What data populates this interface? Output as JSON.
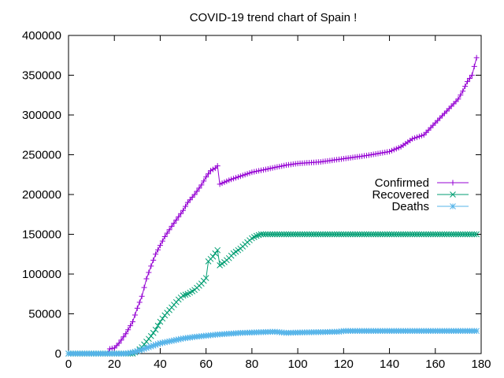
{
  "chart_data": {
    "type": "line",
    "title": "COVID-19 trend chart of Spain !",
    "xlabel": "",
    "ylabel": "",
    "xlim": [
      0,
      180
    ],
    "ylim": [
      0,
      400000
    ],
    "x_ticks": [
      0,
      20,
      40,
      60,
      80,
      100,
      120,
      140,
      160,
      180
    ],
    "y_ticks": [
      0,
      50000,
      100000,
      150000,
      200000,
      250000,
      300000,
      350000,
      400000
    ],
    "grid": false,
    "legend_position": "right-middle",
    "series": [
      {
        "name": "Confirmed",
        "color": "#9400d3",
        "marker": "plus",
        "points": [
          [
            0,
            0
          ],
          [
            17,
            0
          ],
          [
            18,
            6000
          ],
          [
            20,
            7000
          ],
          [
            22,
            13000
          ],
          [
            25,
            25000
          ],
          [
            28,
            40000
          ],
          [
            30,
            57000
          ],
          [
            32,
            72000
          ],
          [
            34,
            94000
          ],
          [
            36,
            110000
          ],
          [
            38,
            125000
          ],
          [
            40,
            136000
          ],
          [
            42,
            147000
          ],
          [
            45,
            160000
          ],
          [
            48,
            172000
          ],
          [
            50,
            180000
          ],
          [
            52,
            190000
          ],
          [
            55,
            200000
          ],
          [
            58,
            212000
          ],
          [
            60,
            222000
          ],
          [
            62,
            230000
          ],
          [
            64,
            233000
          ],
          [
            65,
            236000
          ],
          [
            66,
            213000
          ],
          [
            70,
            218000
          ],
          [
            75,
            223000
          ],
          [
            80,
            228000
          ],
          [
            85,
            231000
          ],
          [
            90,
            234000
          ],
          [
            95,
            237000
          ],
          [
            100,
            239000
          ],
          [
            110,
            241000
          ],
          [
            120,
            245000
          ],
          [
            130,
            249000
          ],
          [
            140,
            254000
          ],
          [
            145,
            260000
          ],
          [
            150,
            270000
          ],
          [
            155,
            275000
          ],
          [
            160,
            290000
          ],
          [
            165,
            305000
          ],
          [
            170,
            320000
          ],
          [
            172,
            330000
          ],
          [
            174,
            342000
          ],
          [
            176,
            350000
          ],
          [
            178,
            372000
          ]
        ]
      },
      {
        "name": "Recovered",
        "color": "#009e73",
        "marker": "cross",
        "points": [
          [
            0,
            0
          ],
          [
            28,
            0
          ],
          [
            30,
            3000
          ],
          [
            32,
            8000
          ],
          [
            34,
            15000
          ],
          [
            36,
            22000
          ],
          [
            38,
            30000
          ],
          [
            40,
            40000
          ],
          [
            42,
            48000
          ],
          [
            45,
            58000
          ],
          [
            48,
            68000
          ],
          [
            50,
            73000
          ],
          [
            52,
            75000
          ],
          [
            55,
            80000
          ],
          [
            58,
            88000
          ],
          [
            60,
            95000
          ],
          [
            61,
            116000
          ],
          [
            63,
            122000
          ],
          [
            65,
            130000
          ],
          [
            66,
            111000
          ],
          [
            68,
            115000
          ],
          [
            70,
            120000
          ],
          [
            72,
            126000
          ],
          [
            75,
            132000
          ],
          [
            78,
            140000
          ],
          [
            80,
            145000
          ],
          [
            82,
            148000
          ],
          [
            84,
            150000
          ],
          [
            90,
            150000
          ],
          [
            100,
            150000
          ],
          [
            120,
            150000
          ],
          [
            140,
            150000
          ],
          [
            160,
            150000
          ],
          [
            178,
            150000
          ]
        ]
      },
      {
        "name": "Deaths",
        "color": "#56b4e9",
        "marker": "star",
        "points": [
          [
            0,
            0
          ],
          [
            25,
            0
          ],
          [
            28,
            1500
          ],
          [
            30,
            3000
          ],
          [
            32,
            5000
          ],
          [
            35,
            8000
          ],
          [
            38,
            11000
          ],
          [
            40,
            13000
          ],
          [
            45,
            16000
          ],
          [
            50,
            19000
          ],
          [
            55,
            21000
          ],
          [
            60,
            22500
          ],
          [
            65,
            24000
          ],
          [
            70,
            25000
          ],
          [
            75,
            26000
          ],
          [
            80,
            26500
          ],
          [
            85,
            27000
          ],
          [
            90,
            27500
          ],
          [
            95,
            26000
          ],
          [
            100,
            26500
          ],
          [
            110,
            27000
          ],
          [
            118,
            27500
          ],
          [
            120,
            28500
          ],
          [
            130,
            28500
          ],
          [
            140,
            28500
          ],
          [
            150,
            28500
          ],
          [
            160,
            28500
          ],
          [
            170,
            28500
          ],
          [
            178,
            28500
          ]
        ]
      }
    ]
  }
}
